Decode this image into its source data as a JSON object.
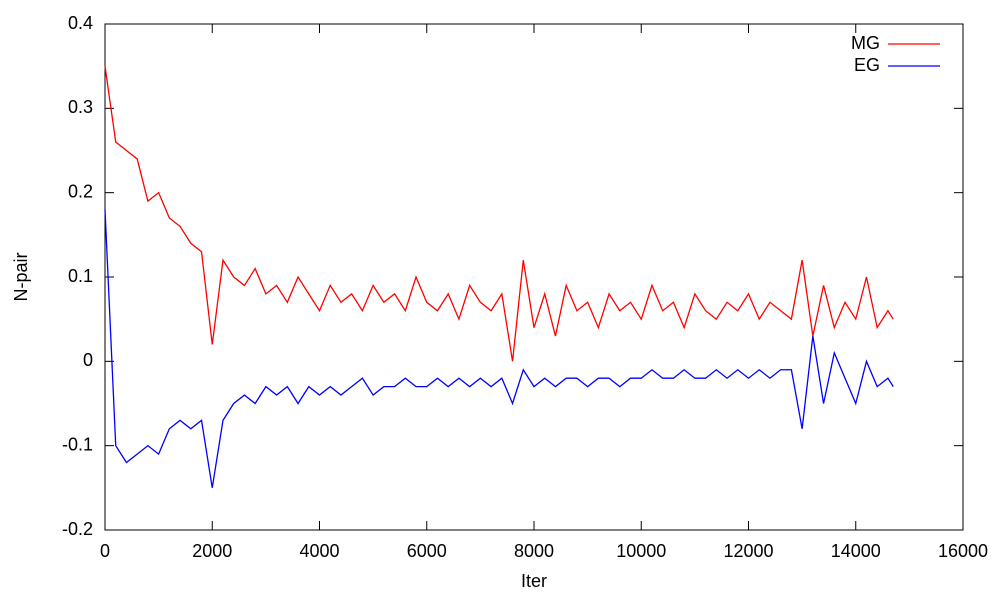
{
  "chart_data": {
    "type": "line",
    "xlabel": "Iter",
    "ylabel": "N-pair",
    "x": [
      0,
      200,
      400,
      600,
      800,
      1000,
      1200,
      1400,
      1600,
      1800,
      2000,
      2200,
      2400,
      2600,
      2800,
      3000,
      3200,
      3400,
      3600,
      3800,
      4000,
      4200,
      4400,
      4600,
      4800,
      5000,
      5200,
      5400,
      5600,
      5800,
      6000,
      6200,
      6400,
      6600,
      6800,
      7000,
      7200,
      7400,
      7600,
      7800,
      8000,
      8200,
      8400,
      8600,
      8800,
      9000,
      9200,
      9400,
      9600,
      9800,
      10000,
      10200,
      10400,
      10600,
      10800,
      11000,
      11200,
      11400,
      11600,
      11800,
      12000,
      12200,
      12400,
      12600,
      12800,
      13000,
      13200,
      13400,
      13600,
      13800,
      14000,
      14200,
      14400,
      14600,
      14700
    ],
    "series": [
      {
        "name": "MG",
        "color": "#ff0000",
        "values": [
          0.35,
          0.26,
          0.25,
          0.24,
          0.19,
          0.2,
          0.17,
          0.16,
          0.14,
          0.13,
          0.02,
          0.12,
          0.1,
          0.09,
          0.11,
          0.08,
          0.09,
          0.07,
          0.1,
          0.08,
          0.06,
          0.09,
          0.07,
          0.08,
          0.06,
          0.09,
          0.07,
          0.08,
          0.06,
          0.1,
          0.07,
          0.06,
          0.08,
          0.05,
          0.09,
          0.07,
          0.06,
          0.08,
          0.0,
          0.12,
          0.04,
          0.08,
          0.03,
          0.09,
          0.06,
          0.07,
          0.04,
          0.08,
          0.06,
          0.07,
          0.05,
          0.09,
          0.06,
          0.07,
          0.04,
          0.08,
          0.06,
          0.05,
          0.07,
          0.06,
          0.08,
          0.05,
          0.07,
          0.06,
          0.05,
          0.12,
          0.03,
          0.09,
          0.04,
          0.07,
          0.05,
          0.1,
          0.04,
          0.06,
          0.05
        ]
      },
      {
        "name": "EG",
        "color": "#0000ff",
        "values": [
          0.18,
          -0.1,
          -0.12,
          -0.11,
          -0.1,
          -0.11,
          -0.08,
          -0.07,
          -0.08,
          -0.07,
          -0.15,
          -0.07,
          -0.05,
          -0.04,
          -0.05,
          -0.03,
          -0.04,
          -0.03,
          -0.05,
          -0.03,
          -0.04,
          -0.03,
          -0.04,
          -0.03,
          -0.02,
          -0.04,
          -0.03,
          -0.03,
          -0.02,
          -0.03,
          -0.03,
          -0.02,
          -0.03,
          -0.02,
          -0.03,
          -0.02,
          -0.03,
          -0.02,
          -0.05,
          -0.01,
          -0.03,
          -0.02,
          -0.03,
          -0.02,
          -0.02,
          -0.03,
          -0.02,
          -0.02,
          -0.03,
          -0.02,
          -0.02,
          -0.01,
          -0.02,
          -0.02,
          -0.01,
          -0.02,
          -0.02,
          -0.01,
          -0.02,
          -0.01,
          -0.02,
          -0.01,
          -0.02,
          -0.01,
          -0.01,
          -0.08,
          0.03,
          -0.05,
          0.01,
          -0.02,
          -0.05,
          0.0,
          -0.03,
          -0.02,
          -0.03
        ]
      }
    ],
    "xlim": [
      0,
      16000
    ],
    "xticks": [
      0,
      2000,
      4000,
      6000,
      8000,
      10000,
      12000,
      14000,
      16000
    ],
    "ylim": [
      -0.2,
      0.4
    ],
    "yticks": [
      -0.2,
      -0.1,
      0,
      0.1,
      0.2,
      0.3,
      0.4
    ],
    "grid": false,
    "legend": "top-right"
  }
}
